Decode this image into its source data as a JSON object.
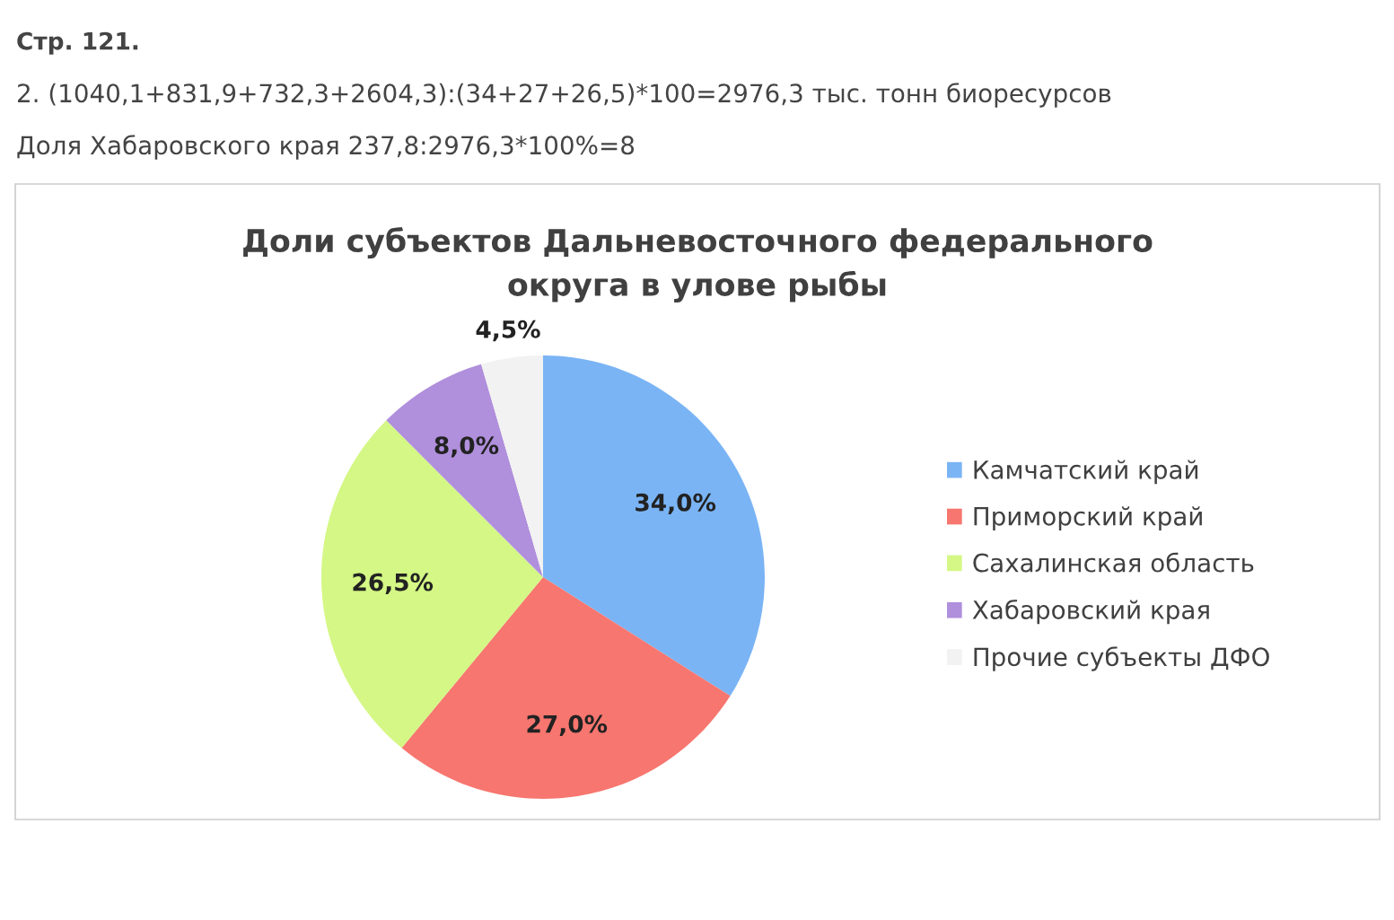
{
  "chart_data": {
    "type": "pie",
    "title": "Доли субъектов Дальневосточного федерального округа в улове рыбы",
    "categories": [
      "Камчатский край",
      "Приморский край",
      "Сахалинская область",
      "Хабаровский края",
      "Прочие субъекты ДФО"
    ],
    "values": [
      34.0,
      27.0,
      26.5,
      8.0,
      4.5
    ],
    "colors": [
      "#7ab4f5",
      "#f7766f",
      "#d4f785",
      "#b08fdc",
      "#f2f2f2"
    ],
    "value_labels": [
      "34,0%",
      "27,0%",
      "26,5%",
      "8,0%",
      "4,5%"
    ],
    "legend": "right",
    "annotations": [
      "Стр. 121.",
      "2. (1040,1+831,9+732,3+2604,3):(34+27+26,5)*100=2976,3 тыс. тонн биоресурсов",
      "Доля Хабаровского края 237,8:2976,3*100%=8"
    ]
  }
}
